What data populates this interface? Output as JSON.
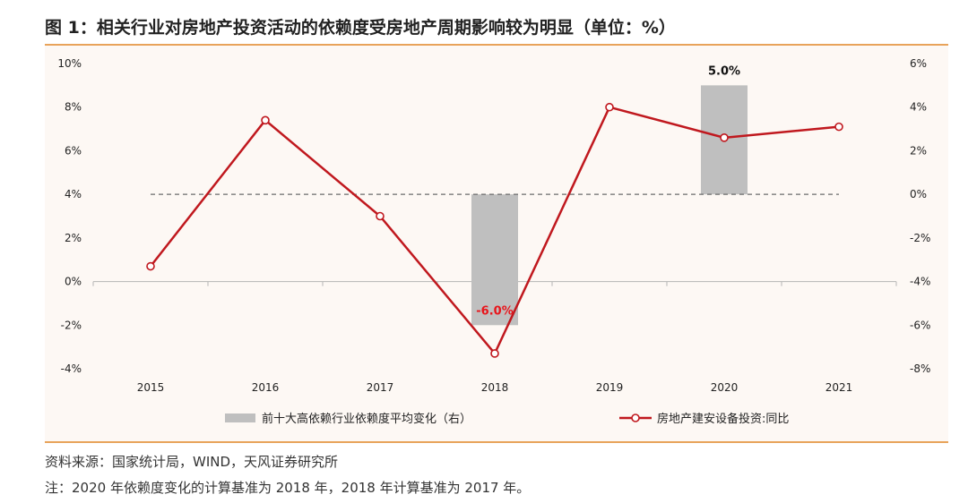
{
  "header": {
    "title": "图 1：相关行业对房地产投资活动的依赖度受房地产周期影响较为明显（单位：%）"
  },
  "footer": {
    "source": "资料来源：国家统计局，WIND，天风证券研究所",
    "note": "注：2020 年依赖度变化的计算基准为 2018 年，2018 年计算基准为 2017 年。"
  },
  "colors": {
    "line": "#c0181e",
    "bar": "#bfbfbf",
    "accent_rule": "#e8a35a",
    "negative_label": "#e8151b"
  },
  "chart_data": {
    "type": "bar+line",
    "categories": [
      "2015",
      "2016",
      "2017",
      "2018",
      "2019",
      "2020",
      "2021"
    ],
    "y_left": {
      "ticks": [
        "10%",
        "8%",
        "6%",
        "4%",
        "2%",
        "0%",
        "-2%",
        "-4%"
      ],
      "range": [
        -4,
        10
      ]
    },
    "y_right": {
      "ticks": [
        "6%",
        "4%",
        "2%",
        "0%",
        "-2%",
        "-4%",
        "-6%",
        "-8%"
      ],
      "range": [
        -8,
        6
      ]
    },
    "series": [
      {
        "name": "前十大高依赖行业依赖度平均变化（右）",
        "type": "bar",
        "axis": "right",
        "values": [
          null,
          null,
          null,
          -6.0,
          null,
          5.0,
          null
        ],
        "data_labels": [
          "",
          "",
          "",
          "-6.0%",
          "",
          "5.0%",
          ""
        ]
      },
      {
        "name": "房地产建安设备投资:同比",
        "type": "line",
        "axis": "left",
        "values": [
          0.7,
          7.4,
          3.0,
          -3.3,
          8.0,
          6.6,
          7.1
        ]
      }
    ],
    "reference_line": {
      "axis": "right",
      "value": 0,
      "style": "dashed"
    },
    "legend_position": "bottom"
  }
}
